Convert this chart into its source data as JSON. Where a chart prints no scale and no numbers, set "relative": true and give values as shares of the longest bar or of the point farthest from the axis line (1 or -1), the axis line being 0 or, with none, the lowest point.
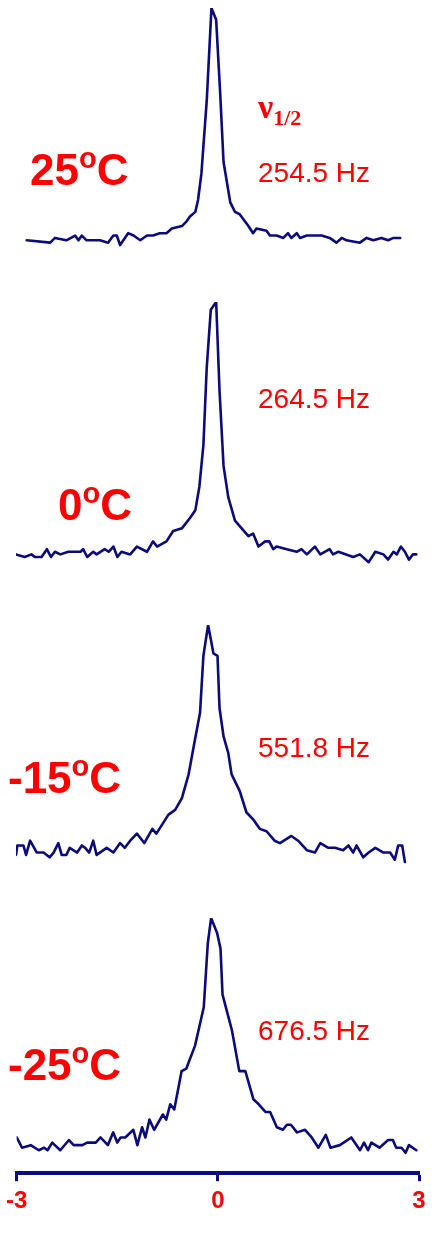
{
  "chart_data": [
    {
      "type": "line",
      "relative": true,
      "title": "25$^{o}$C",
      "annotations": [
        "ν$_{1/2}$",
        "254.5 Hz"
      ],
      "color": "#0b0b7d",
      "xlim": [
        -3,
        3
      ],
      "tick_labels": false,
      "x": [
        -2.84,
        -2.49,
        -2.42,
        -2.25,
        -2.12,
        -2.07,
        -2.02,
        -1.95,
        -1.75,
        -1.63,
        -1.55,
        -1.5,
        -1.45,
        -1.33,
        -1.25,
        -1.15,
        -1.05,
        -0.96,
        -0.86,
        -0.76,
        -0.68,
        -0.53,
        -0.46,
        -0.41,
        -0.33,
        -0.29,
        -0.24,
        -0.16,
        -0.09,
        -0.02,
        0.04,
        0.09,
        0.19,
        0.26,
        0.33,
        0.46,
        0.53,
        0.58,
        0.73,
        0.78,
        0.88,
        0.98,
        1.05,
        1.1,
        1.18,
        1.23,
        1.33,
        1.48,
        1.55,
        1.67,
        1.77,
        1.85,
        1.92,
        2.12,
        2.22,
        2.32,
        2.44,
        2.54,
        2.62,
        2.72
      ],
      "values": [
        0.02,
        0.01,
        0.03,
        0.02,
        0.04,
        0.02,
        0.04,
        0.02,
        0.02,
        0.01,
        0.04,
        0.04,
        0,
        0.05,
        0.04,
        0.02,
        0.04,
        0.04,
        0.05,
        0.05,
        0.07,
        0.08,
        0.1,
        0.12,
        0.14,
        0.19,
        0.3,
        0.61,
        1,
        0.95,
        0.64,
        0.35,
        0.18,
        0.14,
        0.13,
        0.08,
        0.05,
        0.07,
        0.06,
        0.04,
        0.04,
        0.03,
        0.05,
        0.03,
        0.05,
        0.03,
        0.04,
        0.04,
        0.04,
        0.03,
        0.01,
        0.03,
        0.02,
        0.01,
        0.03,
        0.02,
        0.03,
        0.02,
        0.03,
        0.03
      ]
    },
    {
      "type": "line",
      "relative": true,
      "title": "0$^{o}$C",
      "annotations": [
        "264.5 Hz"
      ],
      "color": "#0b0b7d",
      "xlim": [
        -3,
        3
      ],
      "tick_labels": false,
      "x": [
        -3.0,
        -2.87,
        -2.77,
        -2.72,
        -2.62,
        -2.54,
        -2.48,
        -2.42,
        -2.34,
        -2.22,
        -2.04,
        -2.0,
        -1.94,
        -1.85,
        -1.8,
        -1.68,
        -1.62,
        -1.55,
        -1.49,
        -1.43,
        -1.3,
        -1.2,
        -1.05,
        -0.96,
        -0.9,
        -0.76,
        -0.66,
        -0.53,
        -0.41,
        -0.33,
        -0.27,
        -0.21,
        -0.16,
        -0.1,
        -0.02,
        0.03,
        0.09,
        0.16,
        0.26,
        0.36,
        0.46,
        0.53,
        0.61,
        0.71,
        0.77,
        0.83,
        0.88,
        1.03,
        1.18,
        1.25,
        1.33,
        1.45,
        1.53,
        1.67,
        1.72,
        1.8,
        2.02,
        2.12,
        2.25,
        2.35,
        2.47,
        2.54,
        2.62,
        2.67,
        2.73,
        2.79,
        2.85,
        2.91,
        2.96
      ],
      "values": [
        0.03,
        0.02,
        0.03,
        0.02,
        0.02,
        0.05,
        0.02,
        0.04,
        0.03,
        0.04,
        0.04,
        0.05,
        0.02,
        0.04,
        0.03,
        0.05,
        0.04,
        0.06,
        0.02,
        0.04,
        0.03,
        0.06,
        0.04,
        0.08,
        0.06,
        0.08,
        0.12,
        0.13,
        0.17,
        0.2,
        0.29,
        0.45,
        0.75,
        0.97,
        1,
        0.66,
        0.37,
        0.25,
        0.16,
        0.13,
        0.1,
        0.11,
        0.06,
        0.08,
        0.08,
        0.05,
        0.06,
        0.05,
        0.04,
        0.05,
        0.03,
        0.06,
        0.03,
        0.05,
        0.03,
        0.04,
        0.02,
        0.03,
        0,
        0.04,
        0.03,
        0.01,
        0.04,
        0.03,
        0.06,
        0.04,
        0.01,
        0.03,
        0.03
      ]
    },
    {
      "type": "line",
      "relative": true,
      "title": "-15$^{o}$C",
      "annotations": [
        "551.8 Hz"
      ],
      "color": "#0b0b7d",
      "xlim": [
        -3,
        3
      ],
      "tick_labels": false,
      "x": [
        -3.0,
        -2.98,
        -2.89,
        -2.85,
        -2.79,
        -2.69,
        -2.59,
        -2.5,
        -2.44,
        -2.37,
        -2.32,
        -2.25,
        -2.2,
        -2.09,
        -2.02,
        -1.97,
        -1.91,
        -1.85,
        -1.8,
        -1.65,
        -1.55,
        -1.45,
        -1.38,
        -1.3,
        -1.2,
        -1.09,
        -0.97,
        -0.91,
        -0.73,
        -0.63,
        -0.53,
        -0.43,
        -0.34,
        -0.26,
        -0.21,
        -0.14,
        -0.06,
        0.0,
        0.03,
        0.09,
        0.16,
        0.21,
        0.33,
        0.43,
        0.53,
        0.63,
        0.73,
        0.85,
        0.93,
        1.1,
        1.2,
        1.33,
        1.45,
        1.53,
        1.65,
        1.75,
        1.87,
        1.95,
        2.02,
        2.07,
        2.17,
        2.25,
        2.35,
        2.47,
        2.57,
        2.64,
        2.69,
        2.75,
        2.79
      ],
      "values": [
        0.03,
        0.07,
        0.07,
        0.03,
        0.09,
        0.04,
        0.04,
        0.02,
        0.04,
        0.08,
        0.03,
        0.03,
        0.06,
        0.04,
        0.07,
        0.06,
        0.04,
        0.09,
        0.03,
        0.06,
        0.04,
        0.08,
        0.06,
        0.09,
        0.12,
        0.08,
        0.14,
        0.12,
        0.2,
        0.22,
        0.27,
        0.37,
        0.51,
        0.63,
        0.87,
        1,
        0.88,
        0.87,
        0.65,
        0.53,
        0.46,
        0.37,
        0.3,
        0.21,
        0.18,
        0.14,
        0.13,
        0.09,
        0.08,
        0.11,
        0.09,
        0.05,
        0.04,
        0.08,
        0.06,
        0.06,
        0.05,
        0.07,
        0.04,
        0.07,
        0.02,
        0.04,
        0.06,
        0.04,
        0.04,
        0.01,
        0.07,
        0.07,
        0
      ]
    },
    {
      "type": "line",
      "relative": true,
      "title": "-25$^{o}$C",
      "annotations": [
        "676.5 Hz"
      ],
      "color": "#0b0b7d",
      "xlim": [
        -3,
        3
      ],
      "tick_labels": "x",
      "xticks": [
        -3,
        0,
        3
      ],
      "x": [
        -3.0,
        -2.92,
        -2.79,
        -2.67,
        -2.59,
        -2.54,
        -2.47,
        -2.35,
        -2.22,
        -2.15,
        -2.02,
        -1.95,
        -1.82,
        -1.75,
        -1.64,
        -1.56,
        -1.5,
        -1.45,
        -1.38,
        -1.26,
        -1.2,
        -1.13,
        -1.08,
        -1.02,
        -0.95,
        -0.82,
        -0.77,
        -0.71,
        -0.65,
        -0.54,
        -0.47,
        -0.34,
        -0.21,
        -0.15,
        -0.1,
        -0.01,
        0.04,
        0.07,
        0.21,
        0.32,
        0.41,
        0.53,
        0.61,
        0.71,
        0.78,
        0.88,
        0.97,
        1.03,
        1.09,
        1.18,
        1.3,
        1.4,
        1.5,
        1.61,
        1.68,
        1.82,
        1.99,
        2.12,
        2.18,
        2.24,
        2.29,
        2.41,
        2.54,
        2.61,
        2.66,
        2.74,
        2.8,
        2.85,
        2.96
      ],
      "values": [
        0.14,
        0.1,
        0.11,
        0.09,
        0.1,
        0.09,
        0.12,
        0.09,
        0.13,
        0.11,
        0.11,
        0.12,
        0.12,
        0.14,
        0.11,
        0.16,
        0.12,
        0.14,
        0.14,
        0.17,
        0.11,
        0.18,
        0.14,
        0.21,
        0.17,
        0.23,
        0.21,
        0.27,
        0.25,
        0.4,
        0.41,
        0.5,
        0.65,
        0.9,
        1,
        0.94,
        0.88,
        0.7,
        0.56,
        0.4,
        0.4,
        0.29,
        0.27,
        0.24,
        0.24,
        0.18,
        0.17,
        0.19,
        0.19,
        0.16,
        0.17,
        0.14,
        0.1,
        0.15,
        0.1,
        0.11,
        0.14,
        0.09,
        0.12,
        0.09,
        0.12,
        0.1,
        0.13,
        0.13,
        0.1,
        0.1,
        0.08,
        0.11,
        0.09
      ]
    }
  ]
}
